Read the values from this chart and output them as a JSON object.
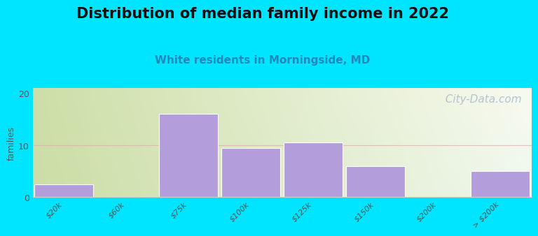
{
  "title": "Distribution of median family income in 2022",
  "subtitle": "White residents in Morningside, MD",
  "categories": [
    "$20k",
    "$60k",
    "$75k",
    "$100k",
    "$125k",
    "$150k",
    "$200k",
    "> $200k"
  ],
  "values": [
    2.5,
    0,
    16,
    9.5,
    10.5,
    6,
    0,
    5
  ],
  "bar_color": "#b39ddb",
  "bar_edge_color": "#ffffff",
  "background_outer": "#00e5ff",
  "plot_bg_topleft": "#cddfa8",
  "plot_bg_topright": "#f0f4e8",
  "plot_bg_bottomleft": "#d8e8b0",
  "plot_bg_bottomright": "#ffffff",
  "ylabel": "families",
  "ylim": [
    0,
    21
  ],
  "yticks": [
    0,
    10,
    20
  ],
  "grid_color": "#ddaaaa",
  "grid_alpha": 0.7,
  "title_fontsize": 15,
  "subtitle_fontsize": 11,
  "subtitle_color": "#2288bb",
  "watermark": "  City-Data.com",
  "watermark_color": "#aabbcc",
  "watermark_fontsize": 11
}
